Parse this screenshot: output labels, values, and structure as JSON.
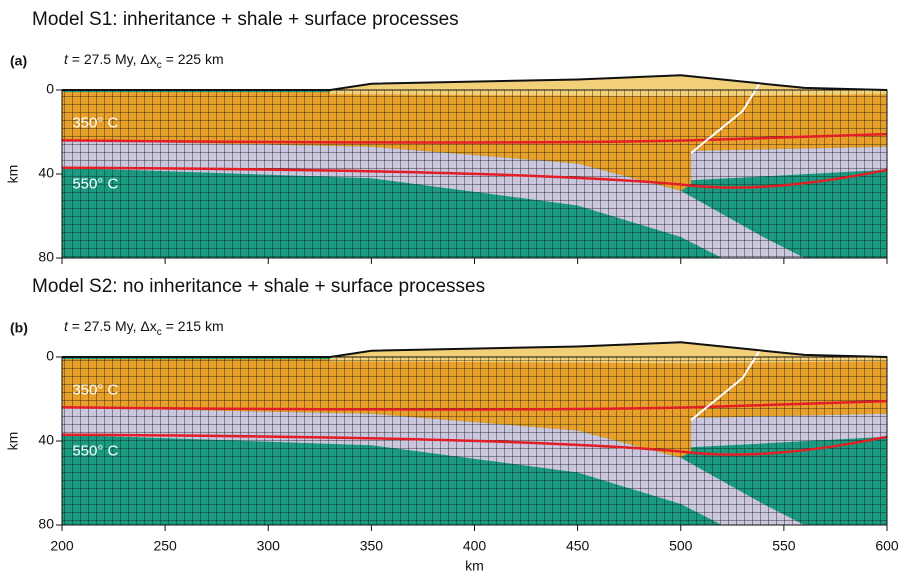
{
  "chart_data": [
    {
      "type": "section",
      "title": "Model S1: inheritance + shale + surface processes",
      "panel_label": "(a)",
      "subtitle_parts": [
        "t",
        " = 27.5 My, Δx",
        "c",
        " = 225 km"
      ],
      "annotations": [
        "350° C",
        "550° C"
      ],
      "ylabel": "km",
      "xlim": [
        200,
        600
      ],
      "xticks": [
        200,
        250,
        300,
        350,
        400,
        450,
        500,
        550,
        600
      ],
      "ylim": [
        0,
        80
      ],
      "yticks": [
        0,
        40,
        80
      ]
    },
    {
      "type": "section",
      "title": "Model S2: no inheritance + shale + surface processes",
      "panel_label": "(b)",
      "subtitle_parts": [
        "t",
        " = 27.5 My, Δx",
        "c",
        " = 215 km"
      ],
      "annotations": [
        "350° C",
        "550° C"
      ],
      "ylabel": "km",
      "xlabel": "km",
      "xlim": [
        200,
        600
      ],
      "xticks": [
        200,
        250,
        300,
        350,
        400,
        450,
        500,
        550,
        600
      ],
      "ylim": [
        0,
        80
      ],
      "yticks": [
        0,
        40,
        80
      ]
    }
  ]
}
